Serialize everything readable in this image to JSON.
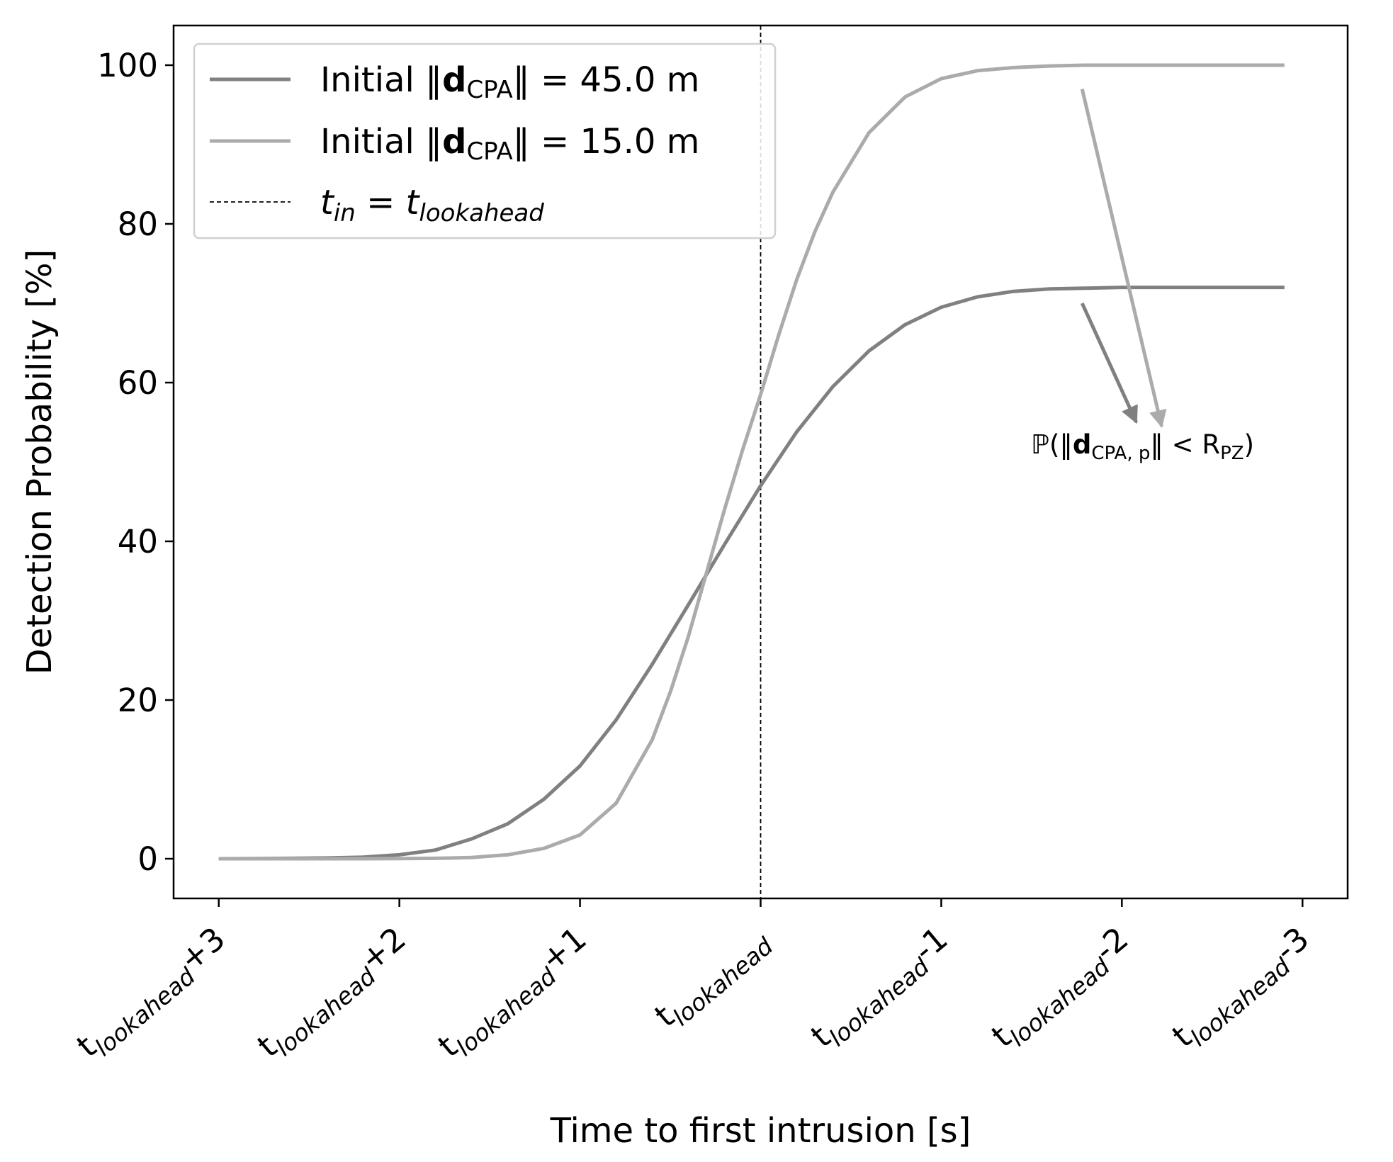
{
  "chart_data": {
    "type": "line",
    "xlabel": "Time to first intrusion [s]",
    "ylabel": "Detection Probability [%]",
    "xlim": [
      -3.25,
      3.25
    ],
    "ylim": [
      -5,
      105
    ],
    "yticks": [
      0,
      20,
      40,
      60,
      80,
      100
    ],
    "xticks": [
      {
        "x": -3,
        "base": "t",
        "sub": "lookahead",
        "suffix": "+3"
      },
      {
        "x": -2,
        "base": "t",
        "sub": "lookahead",
        "suffix": "+2"
      },
      {
        "x": -1,
        "base": "t",
        "sub": "lookahead",
        "suffix": "+1"
      },
      {
        "x": 0,
        "base": "t",
        "sub": "lookahead",
        "suffix": ""
      },
      {
        "x": 1,
        "base": "t",
        "sub": "lookahead",
        "suffix": "-1"
      },
      {
        "x": 2,
        "base": "t",
        "sub": "lookahead",
        "suffix": "-2"
      },
      {
        "x": 3,
        "base": "t",
        "sub": "lookahead",
        "suffix": "-3"
      }
    ],
    "vline": {
      "x": 0,
      "style": "dashed",
      "color": "#000000"
    },
    "series": [
      {
        "name": "Initial ‖d_CPA‖ = 45.0 m",
        "color": "#808080",
        "x": [
          -3.0,
          -2.8,
          -2.6,
          -2.4,
          -2.2,
          -2.0,
          -1.8,
          -1.6,
          -1.4,
          -1.2,
          -1.0,
          -0.8,
          -0.6,
          -0.4,
          -0.2,
          0.0,
          0.2,
          0.4,
          0.6,
          0.8,
          1.0,
          1.2,
          1.4,
          1.6,
          1.8,
          2.0,
          2.2,
          2.4,
          2.6,
          2.9
        ],
        "values": [
          0,
          0.02,
          0.05,
          0.1,
          0.2,
          0.5,
          1.1,
          2.5,
          4.4,
          7.5,
          11.7,
          17.5,
          24.5,
          32.0,
          39.6,
          47.0,
          53.8,
          59.5,
          64.0,
          67.3,
          69.5,
          70.8,
          71.5,
          71.8,
          71.9,
          72.0,
          72.0,
          72.0,
          72.0,
          72.0
        ]
      },
      {
        "name": "Initial ‖d_CPA‖ = 15.0 m",
        "color": "#ababab",
        "x": [
          -3.0,
          -2.6,
          -2.2,
          -2.0,
          -1.8,
          -1.6,
          -1.4,
          -1.2,
          -1.0,
          -0.8,
          -0.6,
          -0.5,
          -0.4,
          -0.3,
          -0.2,
          -0.1,
          0.0,
          0.1,
          0.2,
          0.3,
          0.4,
          0.6,
          0.8,
          1.0,
          1.2,
          1.4,
          1.6,
          1.8,
          2.2,
          2.9
        ],
        "values": [
          0,
          0,
          0,
          0.02,
          0.05,
          0.15,
          0.5,
          1.3,
          3.0,
          7.0,
          15.0,
          21.0,
          28.0,
          36.0,
          44.0,
          51.5,
          58.5,
          66.0,
          73.0,
          79.0,
          84.0,
          91.5,
          96.0,
          98.3,
          99.3,
          99.7,
          99.9,
          100.0,
          100.0,
          100.0
        ]
      }
    ],
    "legend": {
      "placement": "top-left",
      "entries": [
        {
          "prefix": "Initial ‖",
          "bold": "d",
          "sub": "CPA",
          "suffix": "‖ = 45.0 m",
          "color": "#808080",
          "style": "solid"
        },
        {
          "prefix": "Initial ‖",
          "bold": "d",
          "sub": "CPA",
          "suffix": "‖ = 15.0 m",
          "color": "#ababab",
          "style": "solid"
        },
        {
          "t": "t",
          "t_sub": "in",
          "eq": " = ",
          "t2": "t",
          "t2_sub": "lookahead",
          "color": "#000000",
          "style": "dashed"
        }
      ]
    },
    "annotation": {
      "prefix": "ℙ(‖",
      "bold": "d",
      "sub": "CPA, p",
      "mid": "‖ < R",
      "sub2": "PZ",
      "suffix": ")",
      "arrows": [
        {
          "from": [
            1.78,
            70
          ],
          "to": [
            2.08,
            55
          ],
          "color": "#808080"
        },
        {
          "from": [
            1.78,
            97
          ],
          "to": [
            2.22,
            54.5
          ],
          "color": "#ababab"
        }
      ]
    }
  }
}
